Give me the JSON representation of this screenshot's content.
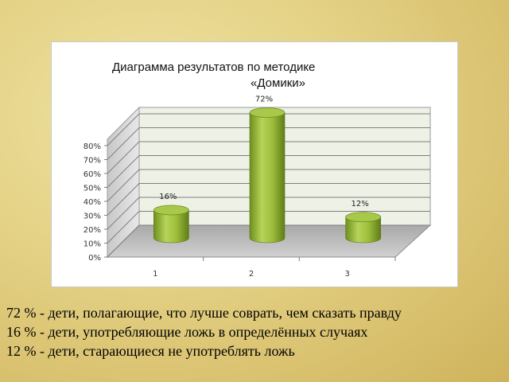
{
  "chart_data": {
    "type": "bar",
    "title_line1": "Диаграмма результатов по методике",
    "title_line2": "«Домики»",
    "categories": [
      "1",
      "2",
      "3"
    ],
    "values": [
      16,
      72,
      12
    ],
    "data_labels": [
      "16%",
      "72%",
      "12%"
    ],
    "y_ticks": [
      "0%",
      "10%",
      "20%",
      "30%",
      "40%",
      "50%",
      "60%",
      "70%",
      "80%"
    ],
    "ylim": [
      0,
      80
    ],
    "grid": true,
    "bar_color": "#9bbb3a"
  },
  "captions": [
    "72 % - дети, полагающие, что лучше соврать, чем сказать правду",
    "16 % - дети, употребляющие ложь в определённых случаях",
    "12 % - дети, старающиеся не употреблять ложь"
  ]
}
